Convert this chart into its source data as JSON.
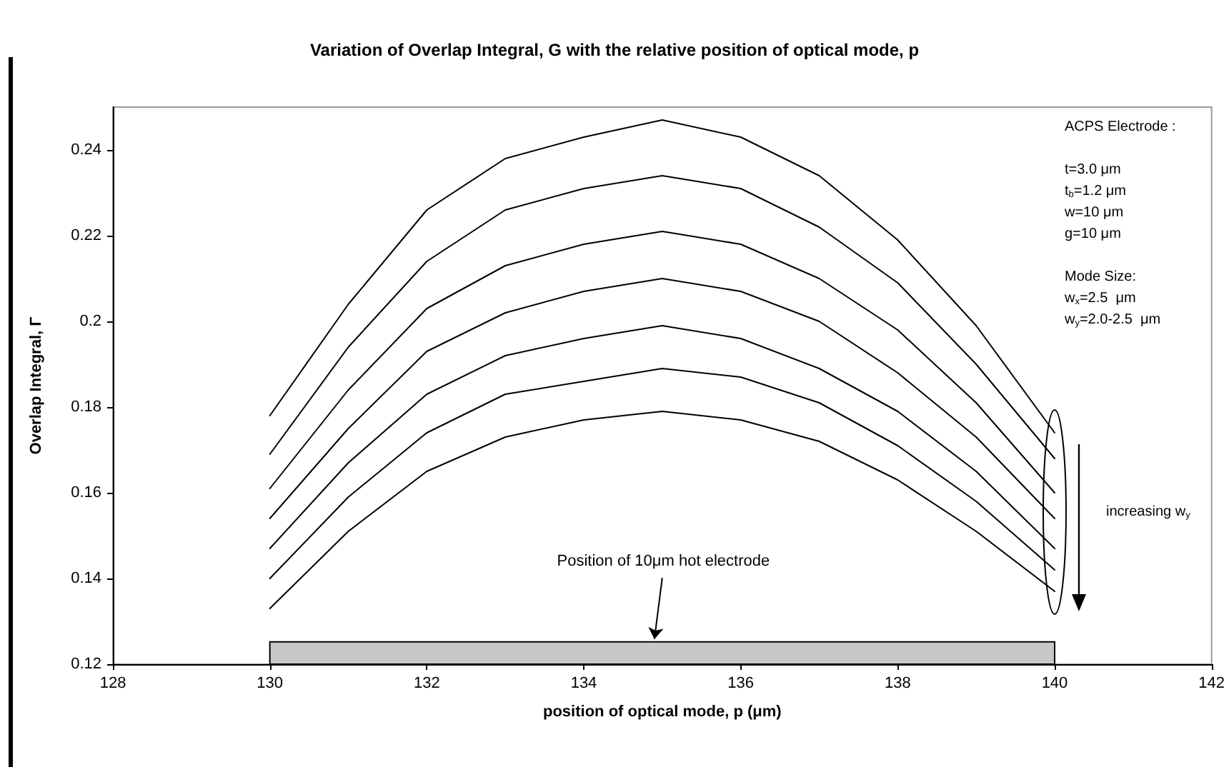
{
  "chart_data": {
    "type": "line",
    "title": "Variation of Overlap Integral, G with the relative position of optical mode, p",
    "xlabel": "position of optical mode, p (μm)",
    "ylabel": "Overlap Integral, Γ",
    "x": [
      130,
      131,
      132,
      133,
      134,
      135,
      136,
      137,
      138,
      139,
      140
    ],
    "series": [
      {
        "color": "#000000",
        "values": [
          0.178,
          0.204,
          0.226,
          0.238,
          0.243,
          0.247,
          0.243,
          0.234,
          0.219,
          0.199,
          0.174
        ]
      },
      {
        "color": "#000000",
        "values": [
          0.169,
          0.194,
          0.214,
          0.226,
          0.231,
          0.234,
          0.231,
          0.222,
          0.209,
          0.19,
          0.168
        ]
      },
      {
        "color": "#000000",
        "values": [
          0.161,
          0.184,
          0.203,
          0.213,
          0.218,
          0.221,
          0.218,
          0.21,
          0.198,
          0.181,
          0.16
        ]
      },
      {
        "color": "#000000",
        "values": [
          0.154,
          0.175,
          0.193,
          0.202,
          0.207,
          0.21,
          0.207,
          0.2,
          0.188,
          0.173,
          0.154
        ]
      },
      {
        "color": "#000000",
        "values": [
          0.147,
          0.167,
          0.183,
          0.192,
          0.196,
          0.199,
          0.196,
          0.189,
          0.179,
          0.165,
          0.147
        ]
      },
      {
        "color": "#000000",
        "values": [
          0.14,
          0.159,
          0.174,
          0.183,
          0.186,
          0.189,
          0.187,
          0.181,
          0.171,
          0.158,
          0.142
        ]
      },
      {
        "color": "#000000",
        "values": [
          0.133,
          0.151,
          0.165,
          0.173,
          0.177,
          0.179,
          0.177,
          0.172,
          0.163,
          0.151,
          0.137
        ]
      }
    ],
    "xlim": [
      128,
      142
    ],
    "xticks": [
      128,
      130,
      132,
      134,
      136,
      138,
      140,
      142
    ],
    "ylim": [
      0.12,
      0.25
    ],
    "yticks": [
      0.12,
      0.14,
      0.16,
      0.18,
      0.2,
      0.22,
      0.24
    ],
    "bands": [
      {
        "axis": "x",
        "from": 130,
        "to": 140,
        "label": "Position of 10μm hot electrode",
        "color": "#c8c8c8"
      }
    ],
    "annotations": [
      "ACPS Electrode :",
      "t=3.0 μm",
      "t$_{b}$=1.2 μm",
      "w=10 μm",
      "g=10 μm",
      "Mode Size:",
      "w$_{x}$=2.5  μm",
      "w$_{y}$=2.0-2.5  μm",
      "increasing w$_{y}$"
    ],
    "grid": false,
    "marker": "none",
    "line_style": "solid"
  }
}
